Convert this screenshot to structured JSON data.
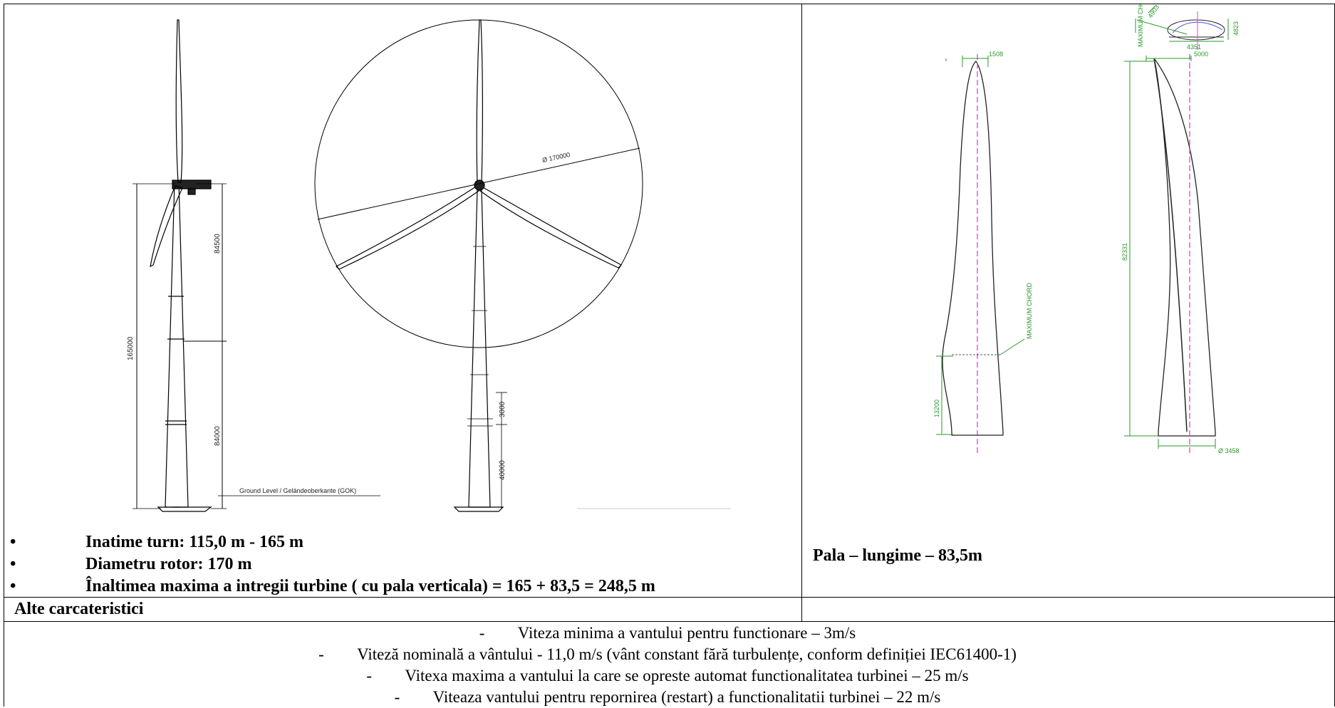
{
  "drawings": {
    "tower_side": {
      "dim_total": "165000",
      "dim_upper": "84500",
      "dim_lower": "84000",
      "ground_label": "Ground Level / Geländeoberkante (GOK)"
    },
    "tower_front": {
      "rotor_diameter": "Ø 170000",
      "dim_base": "40000",
      "dim_small": "3000"
    },
    "blade": {
      "dim_top_front": "1508",
      "dim_top_side": "5000",
      "dim_length": "82331",
      "dim_root": "13200",
      "dim_bottom": "Ø 3458",
      "chord_label": "MAXIMUM CHORD",
      "profile_dim_a": "4351",
      "profile_dim_b": "4823",
      "profile_label": "MAXIMUM CHORD",
      "profile_angle": "4903"
    }
  },
  "bullets": [
    "Inatime turn: 115,0 m - 165 m",
    "Diametru rotor: 170 m",
    "Înaltimea maxima a intregii turbine ( cu pala verticala) = 165 + 83,5 = 248,5 m"
  ],
  "bullet_symbol": "•",
  "pala_caption": "Pala – lungime – 83,5m",
  "alte_header": "Alte carcateristici",
  "dash_symbol": "-",
  "specs": [
    "Viteza minima a vantului pentru functionare – 3m/s",
    "Viteză nominală a vântului - 11,0 m/s (vânt constant fără turbulențe, conform definiției IEC61400-1)",
    "Vitexa maxima a vantului la care se opreste automat functionalitatea turbinei – 25 m/s",
    "Viteaza vantului pentru repornirea (restart) a functionalitatii turbinei – 22 m/s"
  ]
}
